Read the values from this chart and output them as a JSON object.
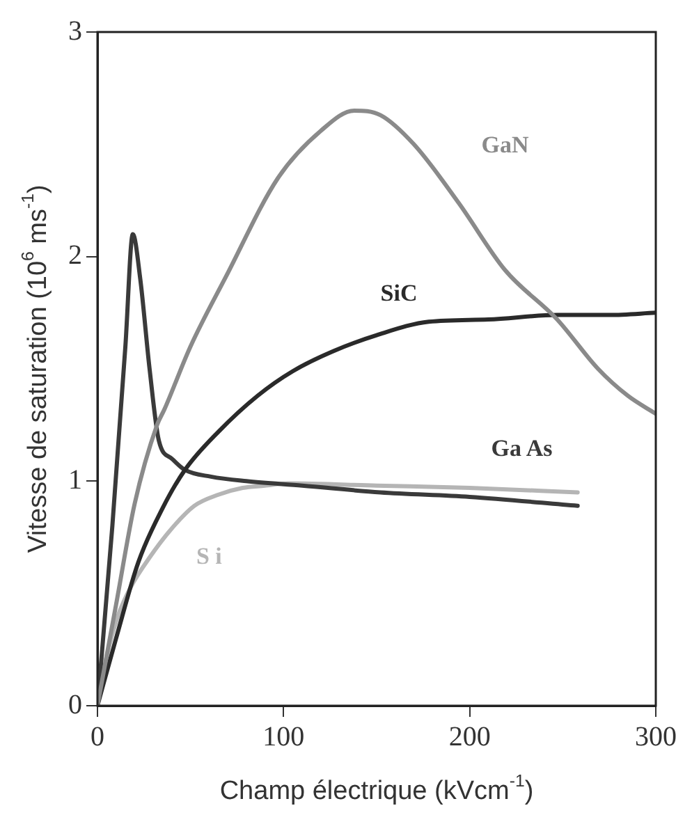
{
  "chart_data": {
    "type": "line",
    "xlabel": "Champ électrique (kVcm$^{-1}$)",
    "ylabel": "Vitesse de saturation (10$^{6}$ ms$^{-1}$)",
    "xlim": [
      0,
      300
    ],
    "xticks": [
      0,
      100,
      200,
      300
    ],
    "ylim": [
      0,
      3
    ],
    "yticks": [
      0,
      1,
      2,
      3
    ],
    "grid": false,
    "legend": false,
    "marker": "none",
    "line_style": "solid",
    "series": [
      {
        "name": "GaN",
        "color": "#8a8a8a",
        "x": [
          0,
          10,
          20,
          32,
          36,
          50,
          69,
          97,
          120,
          138,
          152,
          170,
          194,
          219,
          247,
          269,
          285,
          300
        ],
        "values": [
          0,
          0.45,
          0.9,
          1.25,
          1.32,
          1.6,
          1.91,
          2.35,
          2.56,
          2.65,
          2.63,
          2.5,
          2.24,
          1.94,
          1.72,
          1.5,
          1.38,
          1.3
        ]
      },
      {
        "name": "SiC",
        "color": "#2a2a2a",
        "x": [
          0,
          10,
          22,
          35,
          47,
          65,
          86,
          105,
          127,
          150,
          178,
          210,
          247,
          275,
          300
        ],
        "values": [
          0,
          0.3,
          0.64,
          0.88,
          1.05,
          1.22,
          1.38,
          1.49,
          1.58,
          1.65,
          1.71,
          1.72,
          1.74,
          1.74,
          1.75
        ]
      },
      {
        "name": "Ga As",
        "color": "#3a3a3a",
        "x": [
          0,
          8,
          15,
          19,
          23,
          28,
          33,
          40,
          47,
          61,
          80,
          110,
          152,
          200,
          258
        ],
        "values": [
          0,
          0.8,
          1.6,
          2.1,
          1.9,
          1.5,
          1.18,
          1.1,
          1.05,
          1.02,
          1.0,
          0.98,
          0.95,
          0.93,
          0.89
        ]
      },
      {
        "name": "S i",
        "color": "#b5b5b5",
        "x": [
          0,
          5,
          11,
          18,
          28,
          40,
          52,
          65,
          78,
          90,
          102,
          150,
          200,
          258
        ],
        "values": [
          0,
          0.22,
          0.4,
          0.53,
          0.66,
          0.79,
          0.89,
          0.94,
          0.97,
          0.98,
          0.99,
          0.98,
          0.97,
          0.95
        ]
      }
    ]
  }
}
